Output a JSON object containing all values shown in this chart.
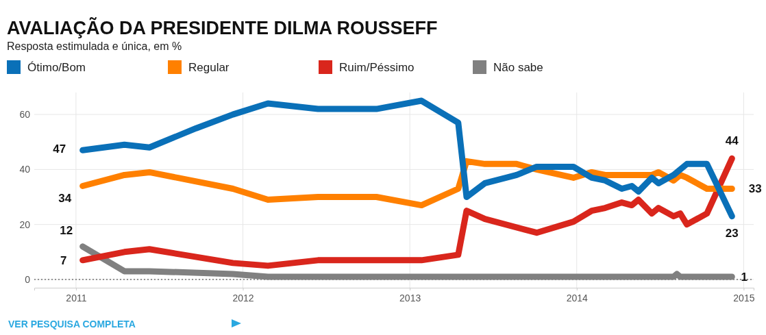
{
  "chart_data": {
    "type": "line",
    "title": "AVALIAÇÃO DA PRESIDENTE DILMA ROUSSEFF",
    "subtitle": "Resposta estimulada e única, em %",
    "xlim": [
      2010.75,
      2015.06
    ],
    "xticks": [
      2011,
      2012,
      2013,
      2014,
      2015
    ],
    "ylim": [
      -3,
      68
    ],
    "yticks": [
      0,
      20,
      40,
      60
    ],
    "grid": true,
    "legend": "top",
    "line_style": "solid",
    "marker": "none",
    "series": [
      {
        "name": "Ótimo/Bom",
        "color": "#0a70b8",
        "x": [
          2011.04,
          2011.29,
          2011.44,
          2011.72,
          2011.94,
          2012.15,
          2012.45,
          2012.8,
          2013.07,
          2013.29,
          2013.34,
          2013.45,
          2013.64,
          2013.76,
          2013.98,
          2014.09,
          2014.17,
          2014.27,
          2014.33,
          2014.37,
          2014.45,
          2014.49,
          2014.58,
          2014.66,
          2014.78,
          2014.93
        ],
        "values": [
          47,
          49,
          48,
          55,
          60,
          64,
          62,
          62,
          65,
          57,
          30,
          35,
          38,
          41,
          41,
          37,
          36,
          33,
          34,
          32,
          37,
          35,
          38,
          42,
          42,
          23
        ],
        "value_labels": [
          "47",
          null,
          null,
          null,
          null,
          null,
          null,
          null,
          null,
          null,
          null,
          null,
          null,
          null,
          null,
          null,
          null,
          null,
          null,
          null,
          null,
          null,
          null,
          null,
          null,
          "23"
        ]
      },
      {
        "name": "Regular",
        "color": "#ff8000",
        "x": [
          2011.04,
          2011.29,
          2011.44,
          2011.94,
          2012.15,
          2012.45,
          2012.8,
          2013.07,
          2013.29,
          2013.34,
          2013.45,
          2013.64,
          2013.76,
          2013.98,
          2014.09,
          2014.17,
          2014.27,
          2014.45,
          2014.49,
          2014.58,
          2014.62,
          2014.66,
          2014.78,
          2014.93
        ],
        "values": [
          34,
          38,
          39,
          33,
          29,
          30,
          30,
          27,
          33,
          43,
          42,
          42,
          40,
          37,
          39,
          38,
          38,
          38,
          39,
          36,
          38,
          37,
          33,
          33
        ],
        "value_labels": [
          "34",
          null,
          null,
          null,
          null,
          null,
          null,
          null,
          null,
          null,
          null,
          null,
          null,
          null,
          null,
          null,
          null,
          null,
          null,
          null,
          null,
          null,
          null,
          "33"
        ]
      },
      {
        "name": "Ruim/Péssimo",
        "color": "#d9261c",
        "x": [
          2011.04,
          2011.29,
          2011.44,
          2011.94,
          2012.15,
          2012.45,
          2012.8,
          2013.07,
          2013.29,
          2013.34,
          2013.45,
          2013.76,
          2013.98,
          2014.09,
          2014.17,
          2014.27,
          2014.33,
          2014.37,
          2014.45,
          2014.49,
          2014.58,
          2014.62,
          2014.66,
          2014.78,
          2014.93
        ],
        "values": [
          7,
          10,
          11,
          6,
          5,
          7,
          7,
          7,
          9,
          25,
          22,
          17,
          21,
          25,
          26,
          28,
          27,
          29,
          24,
          26,
          23,
          24,
          20,
          24,
          44
        ],
        "value_labels": [
          "7",
          null,
          null,
          null,
          null,
          null,
          null,
          null,
          null,
          null,
          null,
          null,
          null,
          null,
          null,
          null,
          null,
          null,
          null,
          null,
          null,
          null,
          null,
          null,
          "44"
        ]
      },
      {
        "name": "Não sabe",
        "color": "#808080",
        "x": [
          2011.04,
          2011.29,
          2011.44,
          2011.94,
          2012.15,
          2012.8,
          2014.58,
          2014.6,
          2014.62,
          2014.93
        ],
        "values": [
          12,
          3,
          3,
          2,
          1,
          1,
          1,
          2,
          1,
          1
        ],
        "value_labels": [
          "12",
          null,
          null,
          null,
          null,
          null,
          null,
          null,
          null,
          "1"
        ]
      }
    ],
    "ref_lines": [
      {
        "axis": "y",
        "value": 0,
        "line_style": "dotted",
        "color": "#333333"
      }
    ],
    "annotations": [
      "VER PESQUISA COMPLETA"
    ]
  }
}
